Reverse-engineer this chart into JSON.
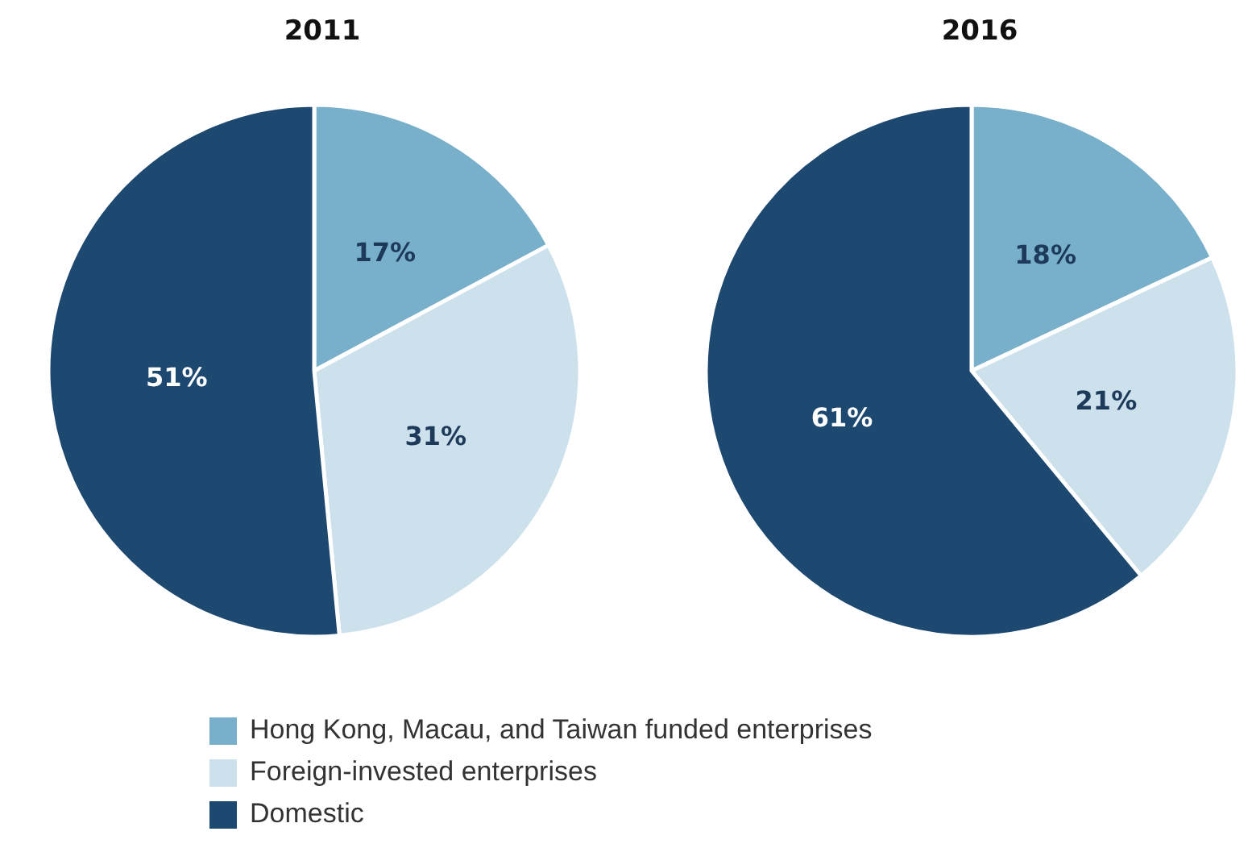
{
  "chart_data": [
    {
      "type": "pie",
      "title": "2011",
      "categories": [
        "Hong Kong, Macau, and Taiwan funded enterprises",
        "Foreign-invested enterprises",
        "Domestic"
      ],
      "values": [
        17,
        31,
        51
      ],
      "colors": [
        "#78afcb",
        "#cde1ec",
        "#1d4870"
      ],
      "value_labels": [
        "17%",
        "31%",
        "51%"
      ],
      "legend": "bottom"
    },
    {
      "type": "pie",
      "title": "2016",
      "categories": [
        null,
        null,
        null
      ],
      "values": [
        18,
        21,
        61
      ],
      "colors": [
        "#78afcb",
        "#cde1ec",
        "#1d4870"
      ],
      "value_labels": [
        "18%",
        "21%",
        "61%"
      ]
    }
  ]
}
